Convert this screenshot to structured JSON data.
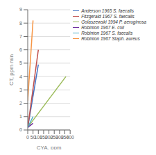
{
  "chart_data": {
    "type": "line",
    "xlabel": "CYA, ppm",
    "ylabel": "CT, ppm min",
    "xlim": [
      0,
      400
    ],
    "ylim": [
      0,
      9
    ],
    "xticks": [
      0,
      50,
      100,
      150,
      200,
      250,
      300,
      350,
      400
    ],
    "yticks": [
      0,
      1,
      2,
      3,
      4,
      5,
      6,
      7,
      8,
      9
    ],
    "grid": "y",
    "legend": "upper right",
    "series": [
      {
        "name": "Anderson 1965 S. faecalis",
        "color": "#4472C4",
        "x": [
          0,
          100
        ],
        "values": [
          0.18,
          4.9
        ]
      },
      {
        "name": "Fitzgerald 1967 S. faecalis",
        "color": "#C0504D",
        "x": [
          0,
          100
        ],
        "values": [
          0.18,
          6.0
        ]
      },
      {
        "name": "Golaszewski 1994 P. aeruginosa",
        "color": "#9BBB59",
        "x": [
          0,
          360
        ],
        "values": [
          0.2,
          4.0
        ]
      },
      {
        "name": "Robinton 1967 E. coli",
        "color": "#7030A0",
        "x": [
          0,
          50
        ],
        "values": [
          0.18,
          0.5
        ]
      },
      {
        "name": "Robinton 1967 S. faecalis",
        "color": "#4BACC6",
        "x": [
          0,
          50
        ],
        "values": [
          0.18,
          1.0
        ]
      },
      {
        "name": "Robinton 1967 Staph. aureus",
        "color": "#F79646",
        "x": [
          0,
          50
        ],
        "values": [
          2.2,
          8.2
        ]
      }
    ]
  }
}
